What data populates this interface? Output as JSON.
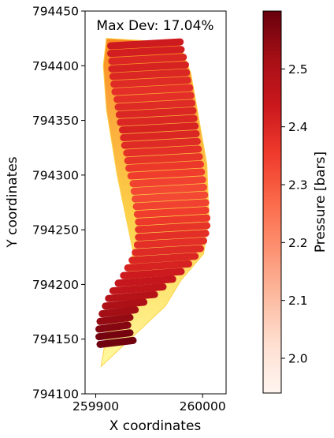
{
  "chart_data": [
    {
      "type": "scatter",
      "title": "",
      "annotation": "Max Dev: 17.04%",
      "xlabel": "X coordinates",
      "ylabel": "Y coordinates",
      "xlim": [
        259890,
        260022
      ],
      "ylim": [
        794100,
        794450
      ],
      "xticks": [
        259900,
        260000
      ],
      "xtick_labels": [
        "259900",
        "260000"
      ],
      "yticks": [
        794100,
        794150,
        794200,
        794250,
        794300,
        794350,
        794400,
        794450
      ],
      "ytick_labels": [
        "794100",
        "794150",
        "794200",
        "794250",
        "794300",
        "794350",
        "794400",
        "794450"
      ],
      "grid": false,
      "background_layer": {
        "description_colors": [
          "#fffaa0",
          "#fdd24a",
          "#fba53a",
          "#f98a1e"
        ],
        "outline": [
          [
            259910,
            794425
          ],
          [
            259978,
            794421
          ],
          [
            259989,
            794393
          ],
          [
            260004,
            794310
          ],
          [
            260006,
            794262
          ],
          [
            260001,
            794228
          ],
          [
            259980,
            794204
          ],
          [
            259965,
            794180
          ],
          [
            259930,
            794148
          ],
          [
            259905,
            794125
          ],
          [
            259911,
            794160
          ],
          [
            259925,
            794190
          ],
          [
            259935,
            794230
          ],
          [
            259920,
            794300
          ],
          [
            259910,
            794360
          ],
          [
            259907,
            794400
          ]
        ]
      },
      "rows": {
        "y_values": [
          794420,
          794413,
          794406,
          794399,
          794392,
          794385,
          794378,
          794371,
          794364,
          794357,
          794350,
          794343,
          794336,
          794329,
          794322,
          794315,
          794308,
          794301,
          794294,
          794287,
          794280,
          794273,
          794266,
          794259,
          794252,
          794245,
          794238,
          794231,
          794224,
          794217,
          794210,
          794203,
          794196,
          794189,
          794182,
          794175,
          794168,
          794161,
          794154,
          794147
        ],
        "x_start": [
          259914,
          259914,
          259915,
          259915,
          259916,
          259917,
          259918,
          259920,
          259921,
          259922,
          259923,
          259925,
          259926,
          259927,
          259929,
          259930,
          259931,
          259933,
          259935,
          259936,
          259937,
          259938,
          259939,
          259940,
          259940,
          259940,
          259939,
          259937,
          259934,
          259930,
          259926,
          259921,
          259916,
          259912,
          259909,
          259906,
          259904,
          259903,
          259903,
          259904
        ],
        "x_end": [
          259979,
          259980,
          259982,
          259984,
          259985,
          259986,
          259988,
          259989,
          259990,
          259991,
          259992,
          259993,
          259994,
          259995,
          259996,
          259997,
          259998,
          259999,
          260000,
          260001,
          260002,
          260003,
          260003,
          260004,
          260004,
          260003,
          260001,
          259998,
          259993,
          259987,
          259980,
          259972,
          259963,
          259955,
          259945,
          259937,
          259932,
          259930,
          259932,
          259935
        ],
        "pressure": [
          2.43,
          2.42,
          2.4,
          2.41,
          2.4,
          2.39,
          2.38,
          2.38,
          2.39,
          2.4,
          2.4,
          2.41,
          2.4,
          2.39,
          2.38,
          2.37,
          2.36,
          2.35,
          2.34,
          2.33,
          2.33,
          2.34,
          2.35,
          2.36,
          2.37,
          2.38,
          2.38,
          2.39,
          2.4,
          2.41,
          2.43,
          2.45,
          2.46,
          2.48,
          2.5,
          2.52,
          2.54,
          2.56,
          2.58,
          2.59
        ]
      }
    },
    {
      "type": "colorbar",
      "label": "Pressure [bars]",
      "range": [
        1.94,
        2.6
      ],
      "ticks": [
        2.0,
        2.1,
        2.2,
        2.3,
        2.4,
        2.5
      ],
      "tick_labels": [
        "2.0",
        "2.1",
        "2.2",
        "2.3",
        "2.4",
        "2.5"
      ],
      "colormap": [
        "#fff5f0",
        "#fee0d2",
        "#fcbba1",
        "#fc9272",
        "#fb6a4a",
        "#ef3b2c",
        "#cb181d",
        "#a50f15",
        "#67000d"
      ]
    }
  ]
}
